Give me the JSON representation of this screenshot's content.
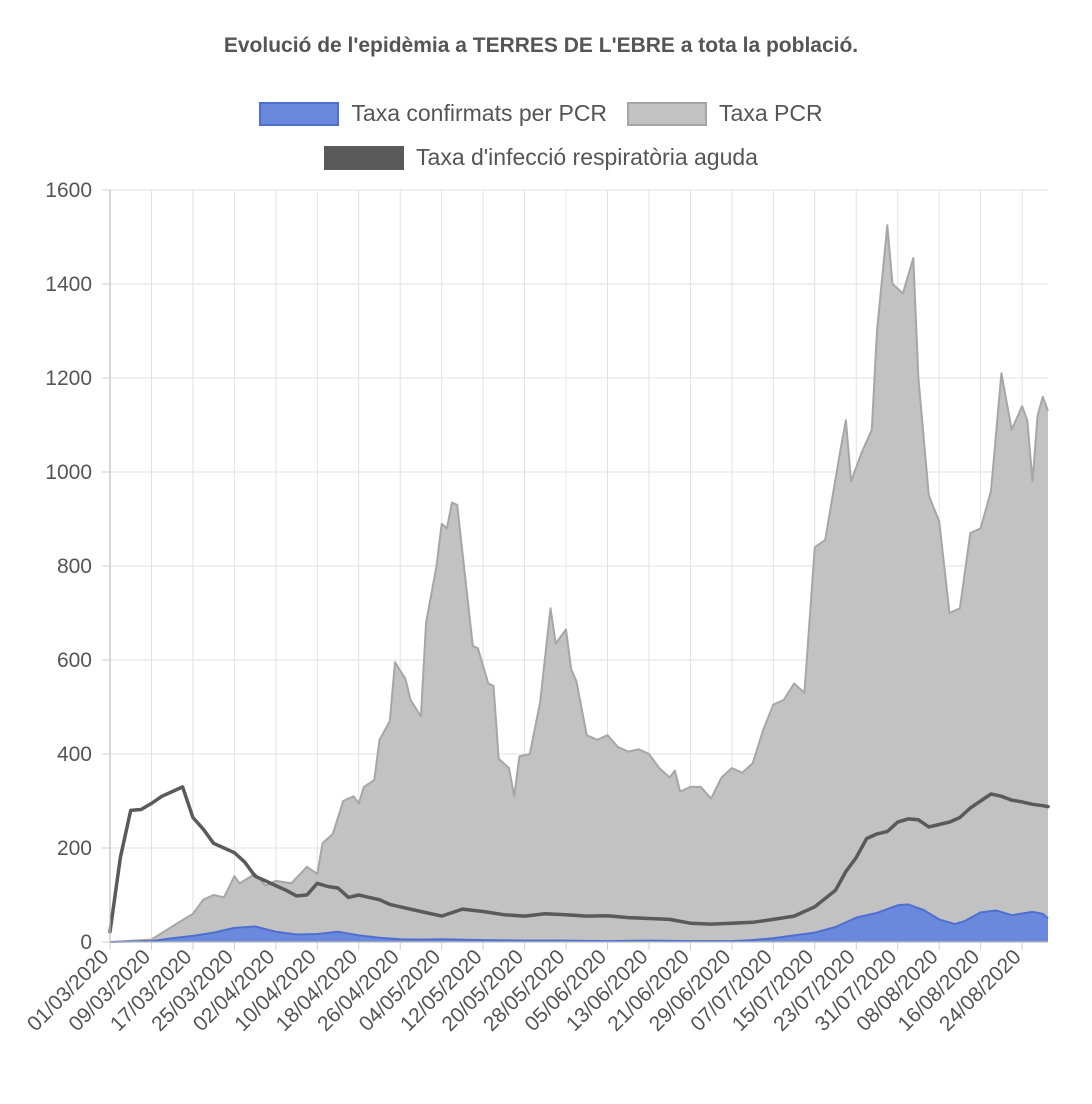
{
  "chart_data": {
    "type": "area",
    "title": "Evolució de l'epidèmia a TERRES DE L'EBRE a tota la població.",
    "xlabel": "",
    "ylabel": "",
    "ylim": [
      0,
      1600
    ],
    "yticks": [
      0,
      200,
      400,
      600,
      800,
      1000,
      1200,
      1400,
      1600
    ],
    "grid": true,
    "legend_position": "top",
    "x_start": "01/03/2020",
    "x_end": "29/08/2020",
    "x_tick_labels": [
      "01/03/2020",
      "09/03/2020",
      "17/03/2020",
      "25/03/2020",
      "02/04/2020",
      "10/04/2020",
      "18/04/2020",
      "26/04/2020",
      "04/05/2020",
      "12/05/2020",
      "20/05/2020",
      "28/05/2020",
      "05/06/2020",
      "13/06/2020",
      "21/06/2020",
      "29/06/2020",
      "07/07/2020",
      "15/07/2020",
      "23/07/2020",
      "31/07/2020",
      "08/08/2020",
      "16/08/2020",
      "24/08/2020"
    ],
    "series": [
      {
        "name": "Taxa confirmats per PCR",
        "kind": "area",
        "color": "#4e6fcf",
        "fill": "#6a88dc",
        "points": [
          [
            "01/03/2020",
            0
          ],
          [
            "09/03/2020",
            2
          ],
          [
            "13/03/2020",
            8
          ],
          [
            "17/03/2020",
            13
          ],
          [
            "21/03/2020",
            20
          ],
          [
            "25/03/2020",
            30
          ],
          [
            "29/03/2020",
            33
          ],
          [
            "02/04/2020",
            22
          ],
          [
            "06/04/2020",
            16
          ],
          [
            "10/04/2020",
            17
          ],
          [
            "14/04/2020",
            22
          ],
          [
            "18/04/2020",
            14
          ],
          [
            "22/04/2020",
            9
          ],
          [
            "26/04/2020",
            6
          ],
          [
            "30/04/2020",
            5
          ],
          [
            "04/05/2020",
            6
          ],
          [
            "12/05/2020",
            4
          ],
          [
            "20/05/2020",
            3
          ],
          [
            "28/05/2020",
            3
          ],
          [
            "05/06/2020",
            2
          ],
          [
            "13/06/2020",
            3
          ],
          [
            "21/06/2020",
            2
          ],
          [
            "29/06/2020",
            2
          ],
          [
            "03/07/2020",
            4
          ],
          [
            "07/07/2020",
            8
          ],
          [
            "11/07/2020",
            14
          ],
          [
            "15/07/2020",
            20
          ],
          [
            "19/07/2020",
            32
          ],
          [
            "23/07/2020",
            52
          ],
          [
            "27/07/2020",
            62
          ],
          [
            "31/07/2020",
            78
          ],
          [
            "02/08/2020",
            80
          ],
          [
            "05/08/2020",
            68
          ],
          [
            "08/08/2020",
            48
          ],
          [
            "11/08/2020",
            38
          ],
          [
            "13/08/2020",
            45
          ],
          [
            "16/08/2020",
            63
          ],
          [
            "19/08/2020",
            67
          ],
          [
            "22/08/2020",
            57
          ],
          [
            "26/08/2020",
            64
          ],
          [
            "28/08/2020",
            60
          ],
          [
            "29/08/2020",
            50
          ]
        ]
      },
      {
        "name": "Taxa PCR",
        "kind": "area",
        "color": "#a6a6a6",
        "fill": "#c2c2c2",
        "points": [
          [
            "01/03/2020",
            0
          ],
          [
            "09/03/2020",
            5
          ],
          [
            "14/03/2020",
            40
          ],
          [
            "17/03/2020",
            60
          ],
          [
            "19/03/2020",
            90
          ],
          [
            "21/03/2020",
            100
          ],
          [
            "23/03/2020",
            95
          ],
          [
            "25/03/2020",
            140
          ],
          [
            "26/03/2020",
            125
          ],
          [
            "29/03/2020",
            145
          ],
          [
            "31/03/2020",
            120
          ],
          [
            "02/04/2020",
            130
          ],
          [
            "05/04/2020",
            125
          ],
          [
            "08/04/2020",
            160
          ],
          [
            "10/04/2020",
            145
          ],
          [
            "11/04/2020",
            210
          ],
          [
            "13/04/2020",
            230
          ],
          [
            "15/04/2020",
            300
          ],
          [
            "17/04/2020",
            310
          ],
          [
            "18/04/2020",
            295
          ],
          [
            "19/04/2020",
            330
          ],
          [
            "21/04/2020",
            345
          ],
          [
            "22/04/2020",
            430
          ],
          [
            "24/04/2020",
            470
          ],
          [
            "25/04/2020",
            595
          ],
          [
            "27/04/2020",
            560
          ],
          [
            "28/04/2020",
            515
          ],
          [
            "30/04/2020",
            480
          ],
          [
            "01/05/2020",
            680
          ],
          [
            "03/05/2020",
            800
          ],
          [
            "04/05/2020",
            890
          ],
          [
            "05/05/2020",
            880
          ],
          [
            "06/05/2020",
            935
          ],
          [
            "07/05/2020",
            930
          ],
          [
            "08/05/2020",
            830
          ],
          [
            "10/05/2020",
            630
          ],
          [
            "11/05/2020",
            625
          ],
          [
            "13/05/2020",
            550
          ],
          [
            "14/05/2020",
            545
          ],
          [
            "15/05/2020",
            390
          ],
          [
            "17/05/2020",
            370
          ],
          [
            "18/05/2020",
            310
          ],
          [
            "19/05/2020",
            395
          ],
          [
            "21/05/2020",
            400
          ],
          [
            "23/05/2020",
            510
          ],
          [
            "25/05/2020",
            710
          ],
          [
            "26/05/2020",
            635
          ],
          [
            "28/05/2020",
            665
          ],
          [
            "29/05/2020",
            580
          ],
          [
            "30/05/2020",
            555
          ],
          [
            "01/06/2020",
            440
          ],
          [
            "03/06/2020",
            430
          ],
          [
            "05/06/2020",
            440
          ],
          [
            "07/06/2020",
            415
          ],
          [
            "09/06/2020",
            405
          ],
          [
            "11/06/2020",
            410
          ],
          [
            "13/06/2020",
            400
          ],
          [
            "15/06/2020",
            370
          ],
          [
            "17/06/2020",
            350
          ],
          [
            "18/06/2020",
            365
          ],
          [
            "19/06/2020",
            320
          ],
          [
            "21/06/2020",
            330
          ],
          [
            "23/06/2020",
            330
          ],
          [
            "25/06/2020",
            305
          ],
          [
            "27/06/2020",
            350
          ],
          [
            "29/06/2020",
            370
          ],
          [
            "01/07/2020",
            360
          ],
          [
            "03/07/2020",
            380
          ],
          [
            "05/07/2020",
            450
          ],
          [
            "07/07/2020",
            505
          ],
          [
            "09/07/2020",
            515
          ],
          [
            "11/07/2020",
            550
          ],
          [
            "13/07/2020",
            530
          ],
          [
            "15/07/2020",
            840
          ],
          [
            "17/07/2020",
            855
          ],
          [
            "18/07/2020",
            920
          ],
          [
            "20/07/2020",
            1050
          ],
          [
            "21/07/2020",
            1110
          ],
          [
            "22/07/2020",
            980
          ],
          [
            "24/07/2020",
            1040
          ],
          [
            "26/07/2020",
            1090
          ],
          [
            "27/07/2020",
            1300
          ],
          [
            "29/07/2020",
            1525
          ],
          [
            "30/07/2020",
            1400
          ],
          [
            "01/08/2020",
            1380
          ],
          [
            "03/08/2020",
            1455
          ],
          [
            "04/08/2020",
            1200
          ],
          [
            "06/08/2020",
            950
          ],
          [
            "08/08/2020",
            895
          ],
          [
            "10/08/2020",
            700
          ],
          [
            "12/08/2020",
            710
          ],
          [
            "14/08/2020",
            870
          ],
          [
            "16/08/2020",
            880
          ],
          [
            "18/08/2020",
            960
          ],
          [
            "20/08/2020",
            1210
          ],
          [
            "22/08/2020",
            1090
          ],
          [
            "24/08/2020",
            1140
          ],
          [
            "25/08/2020",
            1110
          ],
          [
            "26/08/2020",
            980
          ],
          [
            "27/08/2020",
            1120
          ],
          [
            "28/08/2020",
            1160
          ],
          [
            "29/08/2020",
            1130
          ]
        ]
      },
      {
        "name": "Taxa d'infecció respiratòria aguda",
        "kind": "line",
        "color": "#5a5a5a",
        "points": [
          [
            "01/03/2020",
            22
          ],
          [
            "03/03/2020",
            180
          ],
          [
            "05/03/2020",
            280
          ],
          [
            "07/03/2020",
            282
          ],
          [
            "09/03/2020",
            295
          ],
          [
            "11/03/2020",
            310
          ],
          [
            "13/03/2020",
            320
          ],
          [
            "15/03/2020",
            330
          ],
          [
            "17/03/2020",
            265
          ],
          [
            "19/03/2020",
            240
          ],
          [
            "21/03/2020",
            210
          ],
          [
            "23/03/2020",
            200
          ],
          [
            "25/03/2020",
            190
          ],
          [
            "27/03/2020",
            170
          ],
          [
            "29/03/2020",
            140
          ],
          [
            "31/03/2020",
            130
          ],
          [
            "02/04/2020",
            120
          ],
          [
            "04/04/2020",
            110
          ],
          [
            "06/04/2020",
            98
          ],
          [
            "08/04/2020",
            100
          ],
          [
            "10/04/2020",
            125
          ],
          [
            "12/04/2020",
            118
          ],
          [
            "14/04/2020",
            115
          ],
          [
            "16/04/2020",
            95
          ],
          [
            "18/04/2020",
            100
          ],
          [
            "20/04/2020",
            95
          ],
          [
            "22/04/2020",
            90
          ],
          [
            "24/04/2020",
            80
          ],
          [
            "26/04/2020",
            75
          ],
          [
            "30/04/2020",
            65
          ],
          [
            "04/05/2020",
            55
          ],
          [
            "08/05/2020",
            70
          ],
          [
            "12/05/2020",
            65
          ],
          [
            "16/05/2020",
            58
          ],
          [
            "20/05/2020",
            55
          ],
          [
            "24/05/2020",
            60
          ],
          [
            "28/05/2020",
            58
          ],
          [
            "01/06/2020",
            55
          ],
          [
            "05/06/2020",
            56
          ],
          [
            "09/06/2020",
            52
          ],
          [
            "13/06/2020",
            50
          ],
          [
            "17/06/2020",
            48
          ],
          [
            "21/06/2020",
            40
          ],
          [
            "25/06/2020",
            38
          ],
          [
            "29/06/2020",
            40
          ],
          [
            "03/07/2020",
            42
          ],
          [
            "07/07/2020",
            48
          ],
          [
            "11/07/2020",
            55
          ],
          [
            "15/07/2020",
            75
          ],
          [
            "19/07/2020",
            110
          ],
          [
            "21/07/2020",
            150
          ],
          [
            "23/07/2020",
            180
          ],
          [
            "25/07/2020",
            220
          ],
          [
            "27/07/2020",
            230
          ],
          [
            "29/07/2020",
            235
          ],
          [
            "31/07/2020",
            255
          ],
          [
            "02/08/2020",
            262
          ],
          [
            "04/08/2020",
            260
          ],
          [
            "06/08/2020",
            245
          ],
          [
            "08/08/2020",
            250
          ],
          [
            "10/08/2020",
            255
          ],
          [
            "12/08/2020",
            265
          ],
          [
            "14/08/2020",
            285
          ],
          [
            "16/08/2020",
            300
          ],
          [
            "18/08/2020",
            315
          ],
          [
            "20/08/2020",
            310
          ],
          [
            "22/08/2020",
            302
          ],
          [
            "24/08/2020",
            298
          ],
          [
            "26/08/2020",
            293
          ],
          [
            "28/08/2020",
            290
          ],
          [
            "29/08/2020",
            288
          ]
        ]
      }
    ]
  }
}
